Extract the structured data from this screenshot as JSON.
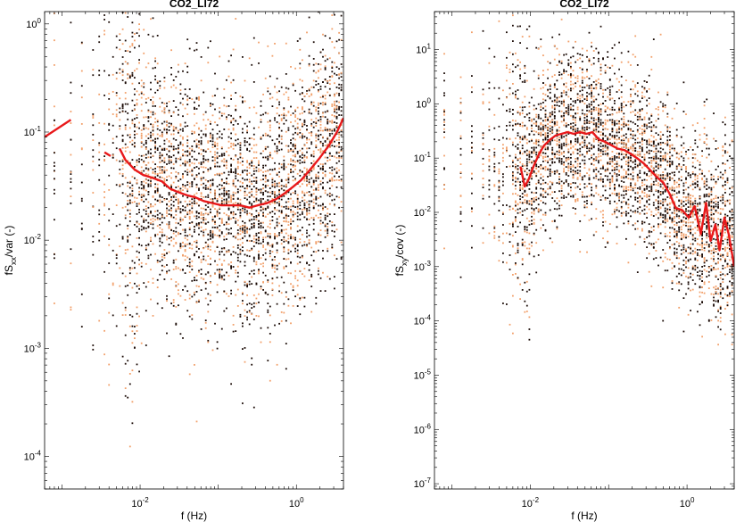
{
  "figure": {
    "panels": [
      "left",
      "right"
    ]
  },
  "colors": {
    "scatter_dark": "#1a0a05",
    "scatter_light": "#f2a06a",
    "median_line": "#e8181a",
    "axes": "#000000"
  },
  "chart_data": [
    {
      "type": "scatter",
      "title": "CO2_LI72",
      "xlabel": "f (Hz)",
      "ylabel_main": "fS",
      "ylabel_sub": "xx",
      "ylabel_rest": "/var (-)",
      "xscale": "log",
      "yscale": "log",
      "xlim": [
        0.0006,
        4
      ],
      "ylim": [
        5e-05,
        1.3
      ],
      "xticks": [
        {
          "value": 0.01,
          "base": "10",
          "exp": "-2"
        },
        {
          "value": 1,
          "base": "10",
          "exp": "0"
        }
      ],
      "yticks": [
        {
          "value": 0.0001,
          "base": "10",
          "exp": "-4"
        },
        {
          "value": 0.001,
          "base": "10",
          "exp": "-3"
        },
        {
          "value": 0.01,
          "base": "10",
          "exp": "-2"
        },
        {
          "value": 0.1,
          "base": "10",
          "exp": "-1"
        },
        {
          "value": 1,
          "base": "10",
          "exp": "0"
        }
      ],
      "series": [
        {
          "kind": "line",
          "x": [
            0.0006,
            0.0013
          ],
          "y": [
            0.09,
            0.13
          ]
        },
        {
          "kind": "line",
          "x": [
            0.0035,
            0.0042
          ],
          "y": [
            0.065,
            0.06
          ]
        },
        {
          "kind": "line",
          "x": [
            0.0055,
            0.0065,
            0.0085,
            0.011,
            0.014,
            0.019,
            0.024,
            0.03,
            0.04,
            0.05,
            0.065,
            0.085,
            0.11,
            0.14,
            0.19,
            0.25,
            0.32,
            0.42,
            0.55,
            0.7,
            0.9,
            1.15,
            1.5,
            2.0,
            2.6,
            3.3,
            4.0
          ],
          "y": [
            0.07,
            0.055,
            0.045,
            0.04,
            0.038,
            0.035,
            0.03,
            0.028,
            0.026,
            0.025,
            0.023,
            0.022,
            0.021,
            0.021,
            0.021,
            0.02,
            0.021,
            0.022,
            0.024,
            0.027,
            0.031,
            0.036,
            0.045,
            0.058,
            0.075,
            0.1,
            0.135
          ]
        }
      ]
    },
    {
      "type": "scatter",
      "title": "CO2_LI72",
      "xlabel": "f (Hz)",
      "ylabel_main": "fS",
      "ylabel_sub": "xy",
      "ylabel_rest": "/cov (-)",
      "xscale": "log",
      "yscale": "log",
      "xlim": [
        0.0006,
        4
      ],
      "ylim": [
        8e-08,
        50
      ],
      "xticks": [
        {
          "value": 0.01,
          "base": "10",
          "exp": "-2"
        },
        {
          "value": 1,
          "base": "10",
          "exp": "0"
        }
      ],
      "yticks": [
        {
          "value": 1e-07,
          "base": "10",
          "exp": "-7"
        },
        {
          "value": 1e-06,
          "base": "10",
          "exp": "-6"
        },
        {
          "value": 1e-05,
          "base": "10",
          "exp": "-5"
        },
        {
          "value": 0.0001,
          "base": "10",
          "exp": "-4"
        },
        {
          "value": 0.001,
          "base": "10",
          "exp": "-3"
        },
        {
          "value": 0.01,
          "base": "10",
          "exp": "-2"
        },
        {
          "value": 0.1,
          "base": "10",
          "exp": "-1"
        },
        {
          "value": 1,
          "base": "10",
          "exp": "0"
        },
        {
          "value": 10,
          "base": "10",
          "exp": "1"
        }
      ],
      "series": [
        {
          "kind": "line",
          "x": [
            0.0075,
            0.0085,
            0.0095,
            0.011,
            0.013,
            0.015,
            0.018,
            0.021,
            0.025,
            0.03,
            0.036,
            0.043,
            0.052,
            0.062,
            0.075,
            0.09,
            0.11,
            0.13,
            0.16,
            0.19,
            0.23,
            0.28,
            0.34,
            0.41,
            0.5,
            0.6,
            0.72,
            0.87,
            1.05,
            1.25,
            1.5,
            1.75,
            2.0,
            2.3,
            2.6,
            3.0,
            3.4,
            4.0
          ],
          "y": [
            0.07,
            0.03,
            0.04,
            0.07,
            0.12,
            0.17,
            0.22,
            0.26,
            0.28,
            0.3,
            0.28,
            0.3,
            0.28,
            0.3,
            0.22,
            0.2,
            0.17,
            0.15,
            0.14,
            0.12,
            0.1,
            0.08,
            0.06,
            0.045,
            0.035,
            0.022,
            0.012,
            0.011,
            0.008,
            0.013,
            0.004,
            0.015,
            0.003,
            0.006,
            0.002,
            0.008,
            0.004,
            0.001
          ]
        }
      ]
    }
  ]
}
